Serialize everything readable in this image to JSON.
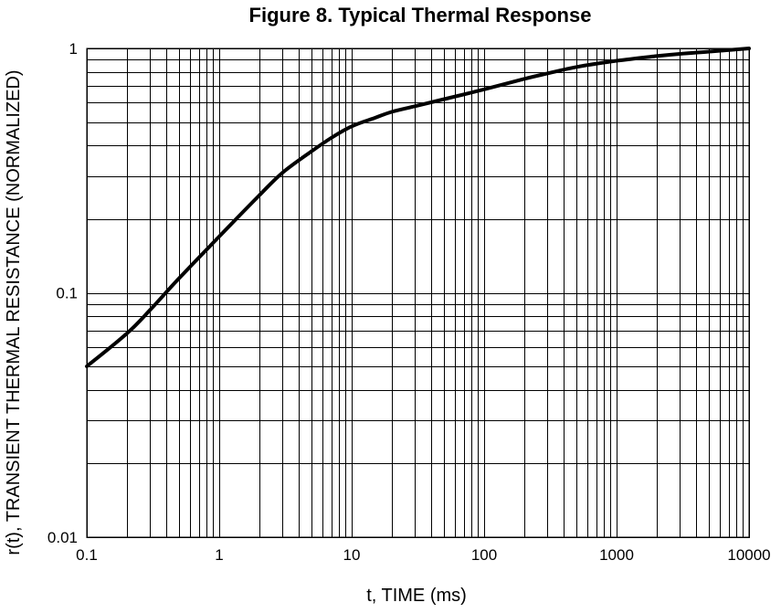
{
  "chart_data": {
    "type": "line",
    "title": "Figure 8. Typical Thermal Response",
    "xlabel": "t, TIME (ms)",
    "ylabel": "r(t), TRANSIENT THERMAL RESISTANCE (NORMALIZED)",
    "x_scale": "log",
    "y_scale": "log",
    "xlim": [
      0.1,
      10000
    ],
    "ylim": [
      0.01,
      1
    ],
    "grid": true,
    "x_ticks": [
      {
        "value": 0.1,
        "label": "0.1"
      },
      {
        "value": 1,
        "label": "1"
      },
      {
        "value": 10,
        "label": "10"
      },
      {
        "value": 100,
        "label": "100"
      },
      {
        "value": 1000,
        "label": "1000"
      },
      {
        "value": 10000,
        "label": "10000"
      }
    ],
    "y_ticks": [
      {
        "value": 0.01,
        "label": "0.01"
      },
      {
        "value": 0.1,
        "label": "0.1"
      },
      {
        "value": 1,
        "label": "1"
      }
    ],
    "series": [
      {
        "name": "r(t)",
        "x": [
          0.1,
          0.2,
          0.3,
          0.5,
          1,
          2,
          3,
          5,
          7,
          10,
          15,
          20,
          30,
          50,
          100,
          200,
          300,
          500,
          1000,
          2000,
          3000,
          5000,
          10000
        ],
        "y": [
          0.05,
          0.068,
          0.085,
          0.115,
          0.17,
          0.25,
          0.31,
          0.38,
          0.43,
          0.48,
          0.52,
          0.55,
          0.58,
          0.62,
          0.68,
          0.75,
          0.79,
          0.84,
          0.89,
          0.93,
          0.95,
          0.97,
          1.0
        ]
      }
    ]
  }
}
